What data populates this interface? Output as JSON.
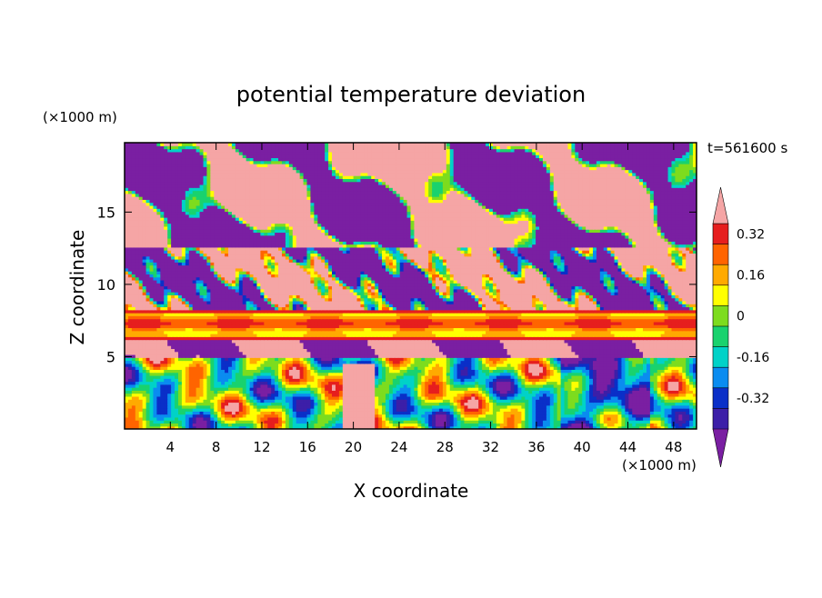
{
  "chart_data": {
    "type": "heatmap",
    "title": "potential temperature deviation",
    "xlabel": "X coordinate",
    "ylabel": "Z coordinate",
    "x_unit": "(×1000 m)",
    "y_unit": "(×1000 m)",
    "time_label": "t=561600 s",
    "xlim": [
      0,
      50
    ],
    "ylim": [
      0,
      19.8
    ],
    "x_ticks": [
      4,
      8,
      12,
      16,
      20,
      24,
      28,
      32,
      36,
      40,
      44,
      48
    ],
    "y_ticks": [
      5,
      10,
      15
    ],
    "colorbar": {
      "labels": [
        "0.32",
        "0.16",
        "0",
        "-0.16",
        "-0.32"
      ],
      "label_values": [
        0.32,
        0.16,
        0,
        -0.16,
        -0.32
      ],
      "levels": [
        -0.4,
        -0.32,
        -0.24,
        -0.16,
        -0.08,
        0,
        0.08,
        0.16,
        0.24,
        0.32,
        0.4
      ],
      "colors": [
        "#7a1fa2",
        "#3c1fa8",
        "#0a2fc8",
        "#0a8cf0",
        "#00d2c8",
        "#19d26e",
        "#7ddc1e",
        "#ffff00",
        "#ffaa00",
        "#ff6400",
        "#e61e1e",
        "#f5a5a5"
      ]
    },
    "bands": [
      {
        "z": [
          0,
          5.0
        ],
        "character": "mixed green/blue/orange turbulence"
      },
      {
        "z": [
          5.0,
          6.2
        ],
        "character": "pink and purple"
      },
      {
        "z": [
          6.2,
          8.2
        ],
        "character": "orange/yellow stripe layer"
      },
      {
        "z": [
          8.2,
          12.5
        ],
        "character": "mixed purple, pink and noisy streaks"
      },
      {
        "z": [
          12.5,
          19.8
        ],
        "character": "large pink and purple blobs"
      }
    ]
  }
}
